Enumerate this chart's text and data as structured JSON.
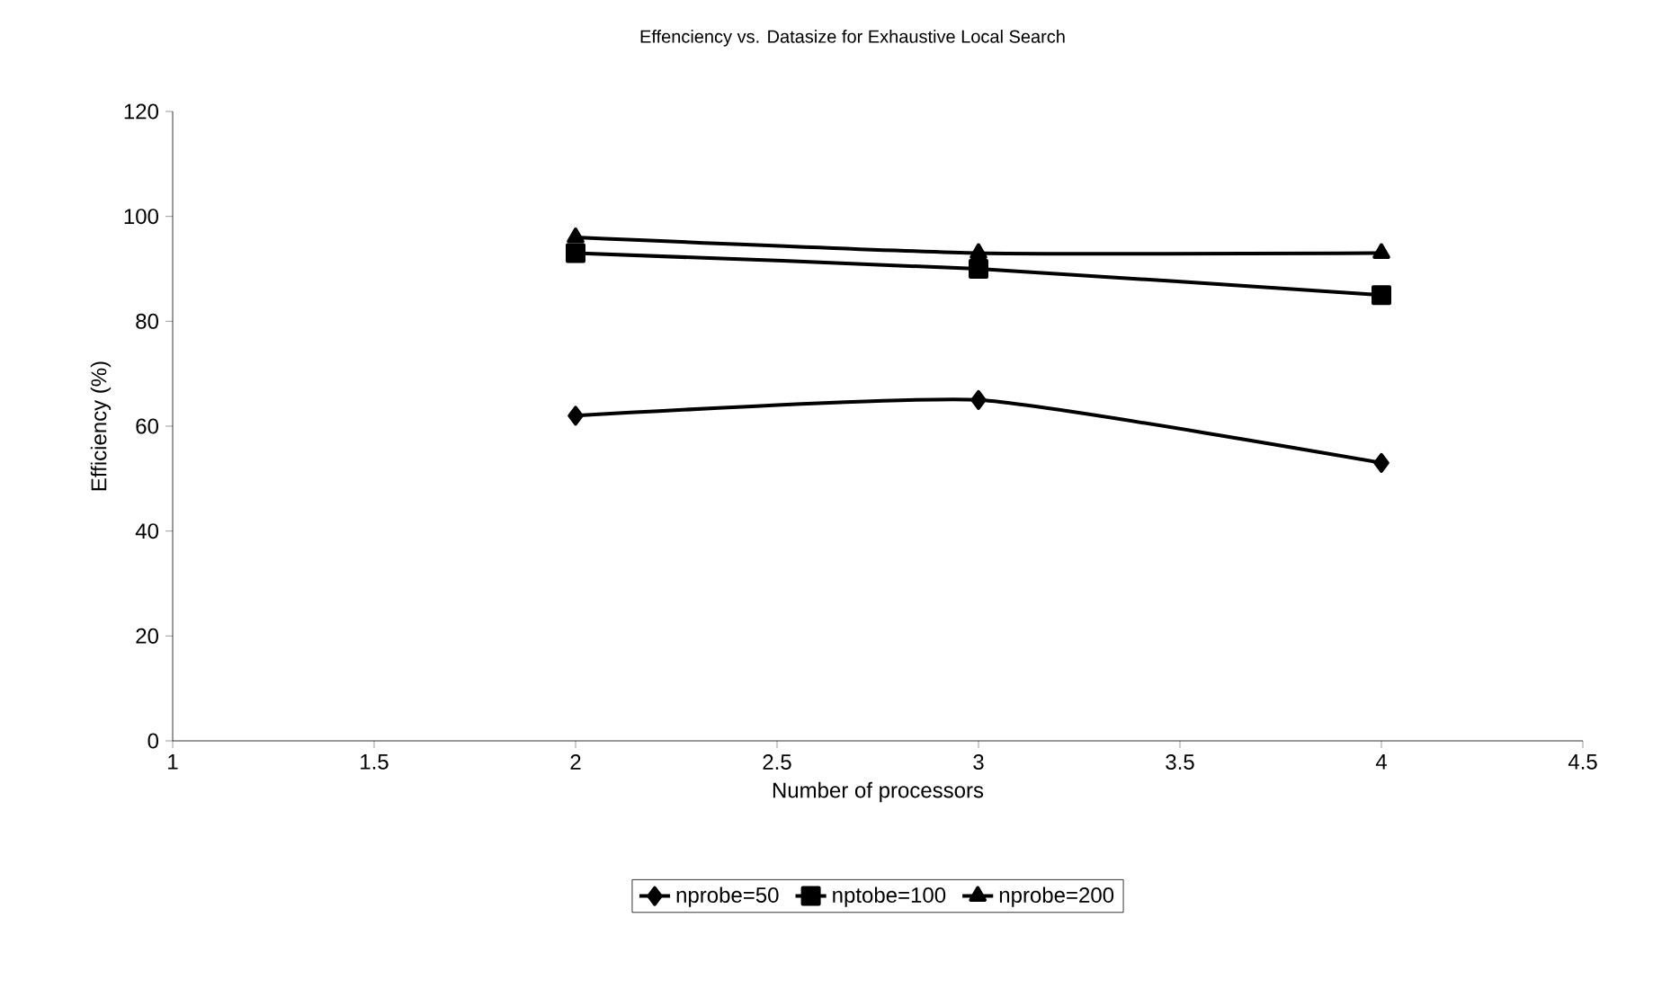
{
  "chart_data": {
    "type": "line",
    "title": "Effenciency vs. Datasize for Exhaustive Local Search",
    "xlabel": "Number of processors",
    "ylabel": "Efficiency (%)",
    "x": [
      2,
      3,
      4
    ],
    "series": [
      {
        "name": "nprobe=50",
        "color": "#000000",
        "marker": "diamond",
        "values": [
          62,
          65,
          53
        ]
      },
      {
        "name": "nptobe=100",
        "color": "#000000",
        "marker": "square",
        "values": [
          93,
          90,
          85
        ]
      },
      {
        "name": "nprobe=200",
        "color": "#000000",
        "marker": "triangle",
        "values": [
          96,
          93,
          93
        ]
      }
    ],
    "xlim": [
      1,
      4.5
    ],
    "xticks": [
      1,
      1.5,
      2,
      2.5,
      3,
      3.5,
      4,
      4.5
    ],
    "ylim": [
      0,
      120
    ],
    "yticks": [
      0,
      20,
      40,
      60,
      80,
      100,
      120
    ],
    "grid": false,
    "legend": "bottom",
    "line_style": "solid"
  }
}
